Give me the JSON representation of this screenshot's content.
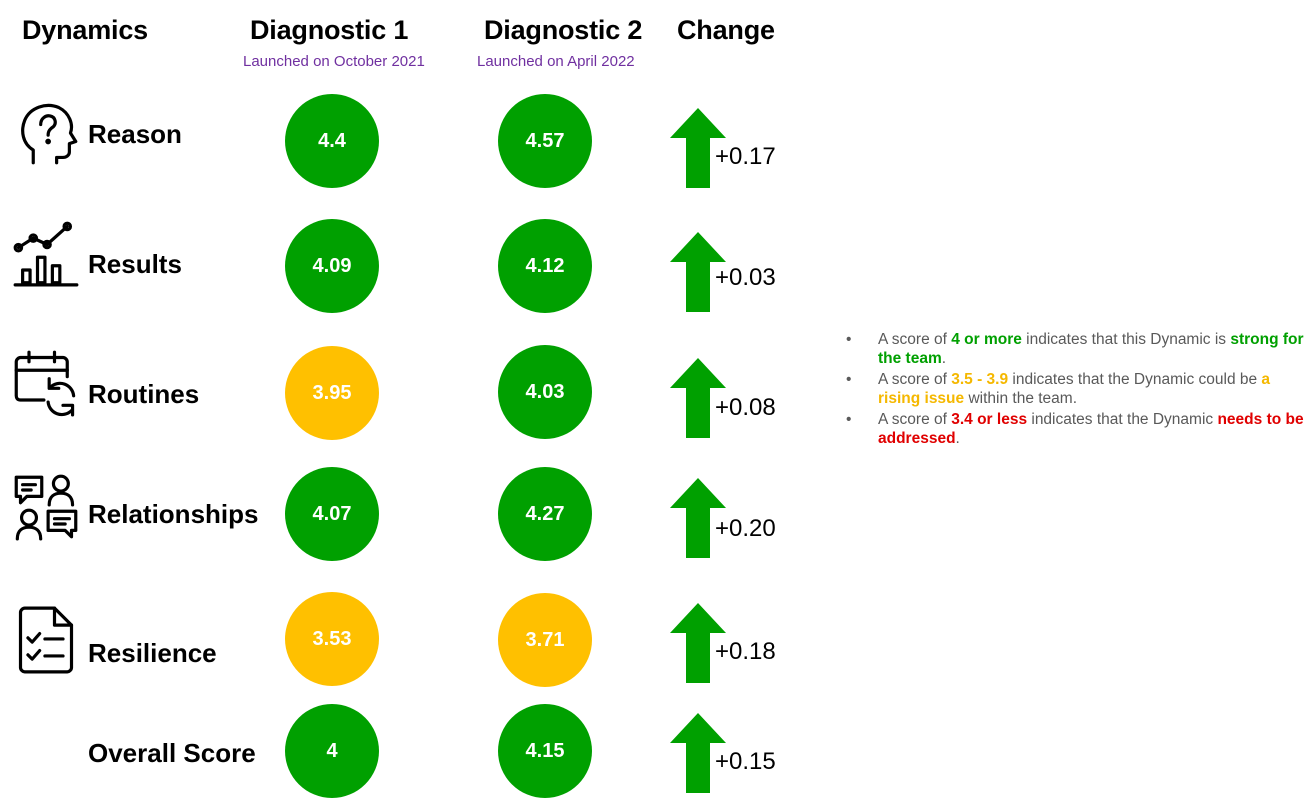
{
  "headers": {
    "dynamics": "Dynamics",
    "diag1": "Diagnostic 1",
    "diag1_sub": "Launched on October 2021",
    "diag2": "Diagnostic 2",
    "diag2_sub": "Launched on April 2022",
    "change": "Change"
  },
  "colors": {
    "green": "#00a000",
    "amber": "#ffc000",
    "red": "#e00000",
    "purple": "#7030a0"
  },
  "rows": [
    {
      "label": "Reason",
      "icon": "head-question-icon",
      "d1": "4.4",
      "d1_color": "green",
      "d2": "4.57",
      "d2_color": "green",
      "change": "+0.17"
    },
    {
      "label": "Results",
      "icon": "chart-trend-icon",
      "d1": "4.09",
      "d1_color": "green",
      "d2": "4.12",
      "d2_color": "green",
      "change": "+0.03"
    },
    {
      "label": "Routines",
      "icon": "calendar-refresh-icon",
      "d1": "3.95",
      "d1_color": "amber",
      "d2": "4.03",
      "d2_color": "green",
      "change": "+0.08"
    },
    {
      "label": "Relationships",
      "icon": "people-chat-icon",
      "d1": "4.07",
      "d1_color": "green",
      "d2": "4.27",
      "d2_color": "green",
      "change": "+0.20"
    },
    {
      "label": "Resilience",
      "icon": "checklist-icon",
      "d1": "3.53",
      "d1_color": "amber",
      "d2": "3.71",
      "d2_color": "amber",
      "change": "+0.18"
    },
    {
      "label": "Overall Score",
      "icon": "",
      "d1": "4",
      "d1_color": "green",
      "d2": "4.15",
      "d2_color": "green",
      "change": "+0.15"
    }
  ],
  "legend": [
    {
      "pre": "A score of ",
      "hl": "4 or more",
      "mid": " indicates that this Dynamic is ",
      "hl2": "strong for the team",
      "post": "."
    },
    {
      "pre": "A score of ",
      "hl": "3.5 - 3.9",
      "mid": " indicates that the Dynamic could be ",
      "hl2": "a rising issue",
      "post": " within the team."
    },
    {
      "pre": "A score of ",
      "hl": "3.4 or less",
      "mid": " indicates that the Dynamic ",
      "hl2": "needs to be addressed",
      "post": "."
    }
  ]
}
